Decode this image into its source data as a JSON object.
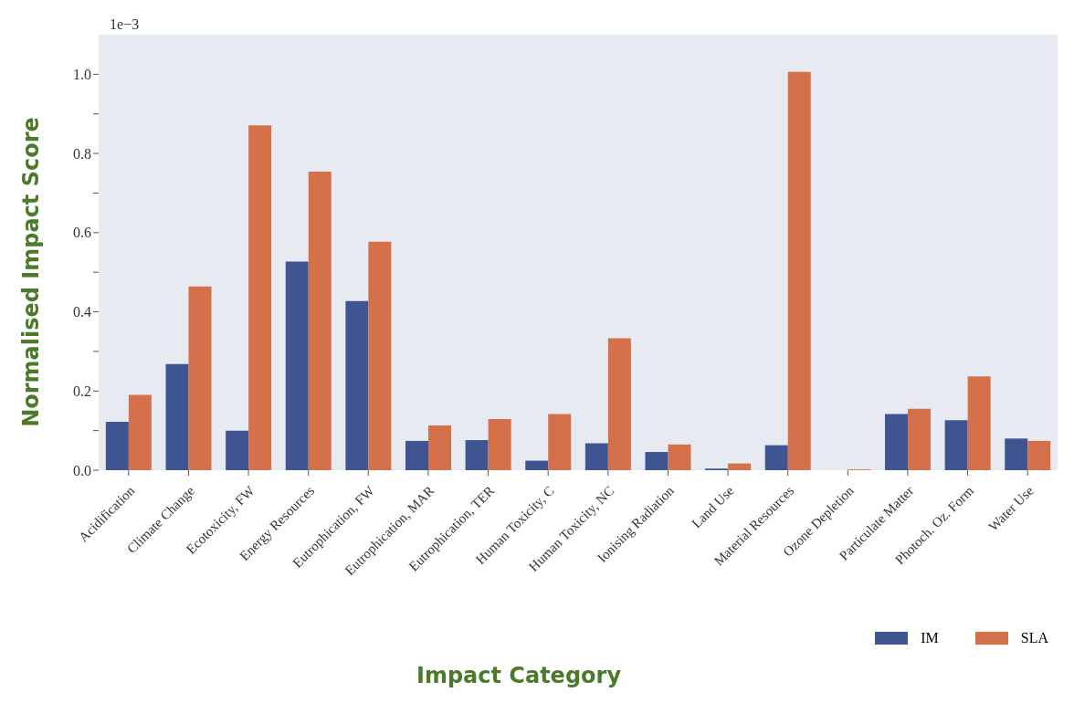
{
  "chart_data": {
    "type": "bar",
    "xlabel": "Impact Category",
    "ylabel": "Normalised Impact Score",
    "annotations": [
      "1e−3"
    ],
    "categories": [
      "Acidification",
      "Climate Change",
      "Ecotoxicity, FW",
      "Energy Resources",
      "Eutrophication, FW",
      "Eutrophication, MAR",
      "Eutrophication, TER",
      "Human Toxicity, C",
      "Human Toxicity, NC",
      "Ionising Radiation",
      "Land Use",
      "Material Resources",
      "Ozone Depletion",
      "Particulate Matter",
      "Photoch. Oz. Form",
      "Water Use"
    ],
    "series": [
      {
        "name": "IM",
        "color": "#3f5592",
        "values": [
          0.122,
          0.268,
          0.1,
          0.527,
          0.427,
          0.074,
          0.076,
          0.024,
          0.068,
          0.046,
          0.004,
          0.063,
          0.0,
          0.142,
          0.126,
          0.08
        ]
      },
      {
        "name": "SLA",
        "color": "#d4714a",
        "values": [
          0.19,
          0.464,
          0.871,
          0.754,
          0.577,
          0.113,
          0.129,
          0.142,
          0.333,
          0.065,
          0.017,
          1.006,
          0.002,
          0.155,
          0.237,
          0.074
        ]
      }
    ],
    "ylim": [
      0,
      1.1
    ],
    "yticks": [
      {
        "value": 0,
        "label": "0.0"
      },
      {
        "value": 0.1,
        "label": null
      },
      0.2,
      {
        "value": 0.3,
        "label": null
      },
      0.4,
      {
        "value": 0.5,
        "label": null
      },
      0.6,
      {
        "value": 0.7,
        "label": null
      },
      0.8,
      {
        "value": 0.9,
        "label": null
      },
      {
        "value": 1.0,
        "label": "1.0"
      }
    ],
    "grid": false,
    "legend": "bottom right"
  }
}
